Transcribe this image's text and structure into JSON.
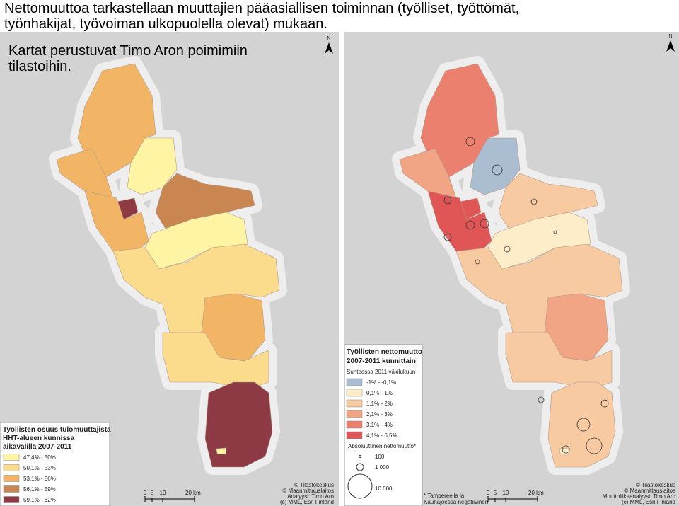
{
  "title": {
    "lines": [
      "Nettomuuttoa tarkastellaan muuttajien pääasiallisen toiminnan (työlliset, työttömät,",
      "työnhakijat, työvoiman ulkopuolella olevat) mukaan."
    ]
  },
  "subtitle": {
    "lines": [
      "Kartat perustuvat Timo Aron poimimiin",
      "tilastoihin."
    ]
  },
  "left_map": {
    "north": "N",
    "legend": {
      "title_lines": [
        "Työllisten osuus tulomuuttajista",
        "HHT-alueen kunnissa",
        "aikavälillä 2007-2011"
      ],
      "items": [
        {
          "label": "47,4% - 50%",
          "color": "#fff4a3"
        },
        {
          "label": "50,1% - 53%",
          "color": "#fbdb8c"
        },
        {
          "label": "53,1% - 56%",
          "color": "#f2b565"
        },
        {
          "label": "56,1% - 59%",
          "color": "#c98651"
        },
        {
          "label": "59,1% - 62%",
          "color": "#8e3a44"
        }
      ]
    },
    "scale": [
      "0",
      "5",
      "10",
      "20 km"
    ],
    "credits": [
      "© Tilastokeskus",
      "© Maanmittauslaitos",
      "Analyysi: Timo Aro",
      "(c) MML, Esri Finland"
    ]
  },
  "right_map": {
    "north": "N",
    "legend": {
      "title_lines": [
        "Työllisten nettomuutto",
        "2007-2011 kunnittain"
      ],
      "subtitle": "Suhteessa 2011 väkilukuun",
      "items": [
        {
          "label": "-1% - -0,1%",
          "color": "#aabdd1"
        },
        {
          "label": "0,1% - 1%",
          "color": "#fdeec9"
        },
        {
          "label": "1,1% - 2%",
          "color": "#f8caa2"
        },
        {
          "label": "2,1% - 3%",
          "color": "#f2a585"
        },
        {
          "label": "3,1% - 4%",
          "color": "#ea806d"
        },
        {
          "label": "4,1% - 6,5%",
          "color": "#e05656"
        }
      ],
      "size_title": "Absoluuttinen nettomuutto*",
      "sizes": [
        "100",
        "1 000",
        "10 000"
      ]
    },
    "footnote": [
      "* Tampereella ja",
      "Kauhajoessa negatiivinen"
    ],
    "scale": [
      "0",
      "5",
      "10",
      "20 km"
    ],
    "credits": [
      "© Tilastokeskus",
      "© Maanmittauslaitos",
      "Muuttoliikeanalyysi: Timo Aro",
      "(c) MML, Esri Finland"
    ]
  }
}
